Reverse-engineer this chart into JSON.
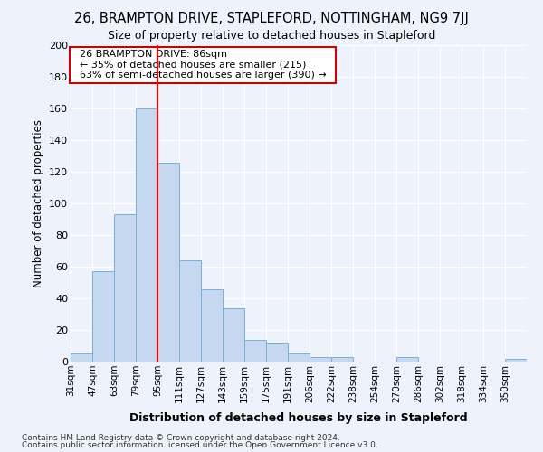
{
  "title": "26, BRAMPTON DRIVE, STAPLEFORD, NOTTINGHAM, NG9 7JJ",
  "subtitle": "Size of property relative to detached houses in Stapleford",
  "xlabel": "Distribution of detached houses by size in Stapleford",
  "ylabel": "Number of detached properties",
  "bin_labels": [
    "31sqm",
    "47sqm",
    "63sqm",
    "79sqm",
    "95sqm",
    "111sqm",
    "127sqm",
    "143sqm",
    "159sqm",
    "175sqm",
    "191sqm",
    "206sqm",
    "222sqm",
    "238sqm",
    "254sqm",
    "270sqm",
    "286sqm",
    "302sqm",
    "318sqm",
    "334sqm",
    "350sqm"
  ],
  "bar_heights": [
    5,
    57,
    93,
    160,
    126,
    64,
    46,
    34,
    14,
    12,
    5,
    3,
    3,
    0,
    0,
    3,
    0,
    0,
    0,
    0,
    2
  ],
  "bar_color": "#c5d8f0",
  "bar_edge_color": "#7bafd4",
  "red_line_x": 4.0,
  "annotation_line1": "26 BRAMPTON DRIVE: 86sqm",
  "annotation_line2": "← 35% of detached houses are smaller (215)",
  "annotation_line3": "63% of semi-detached houses are larger (390) →",
  "footnote1": "Contains HM Land Registry data © Crown copyright and database right 2024.",
  "footnote2": "Contains public sector information licensed under the Open Government Licence v3.0.",
  "ylim": [
    0,
    200
  ],
  "yticks": [
    0,
    20,
    40,
    60,
    80,
    100,
    120,
    140,
    160,
    180,
    200
  ],
  "bg_color": "#eef3fb",
  "grid_color": "#ffffff",
  "annotation_box_color": "#ffffff",
  "annotation_box_edge": "#cc0000"
}
